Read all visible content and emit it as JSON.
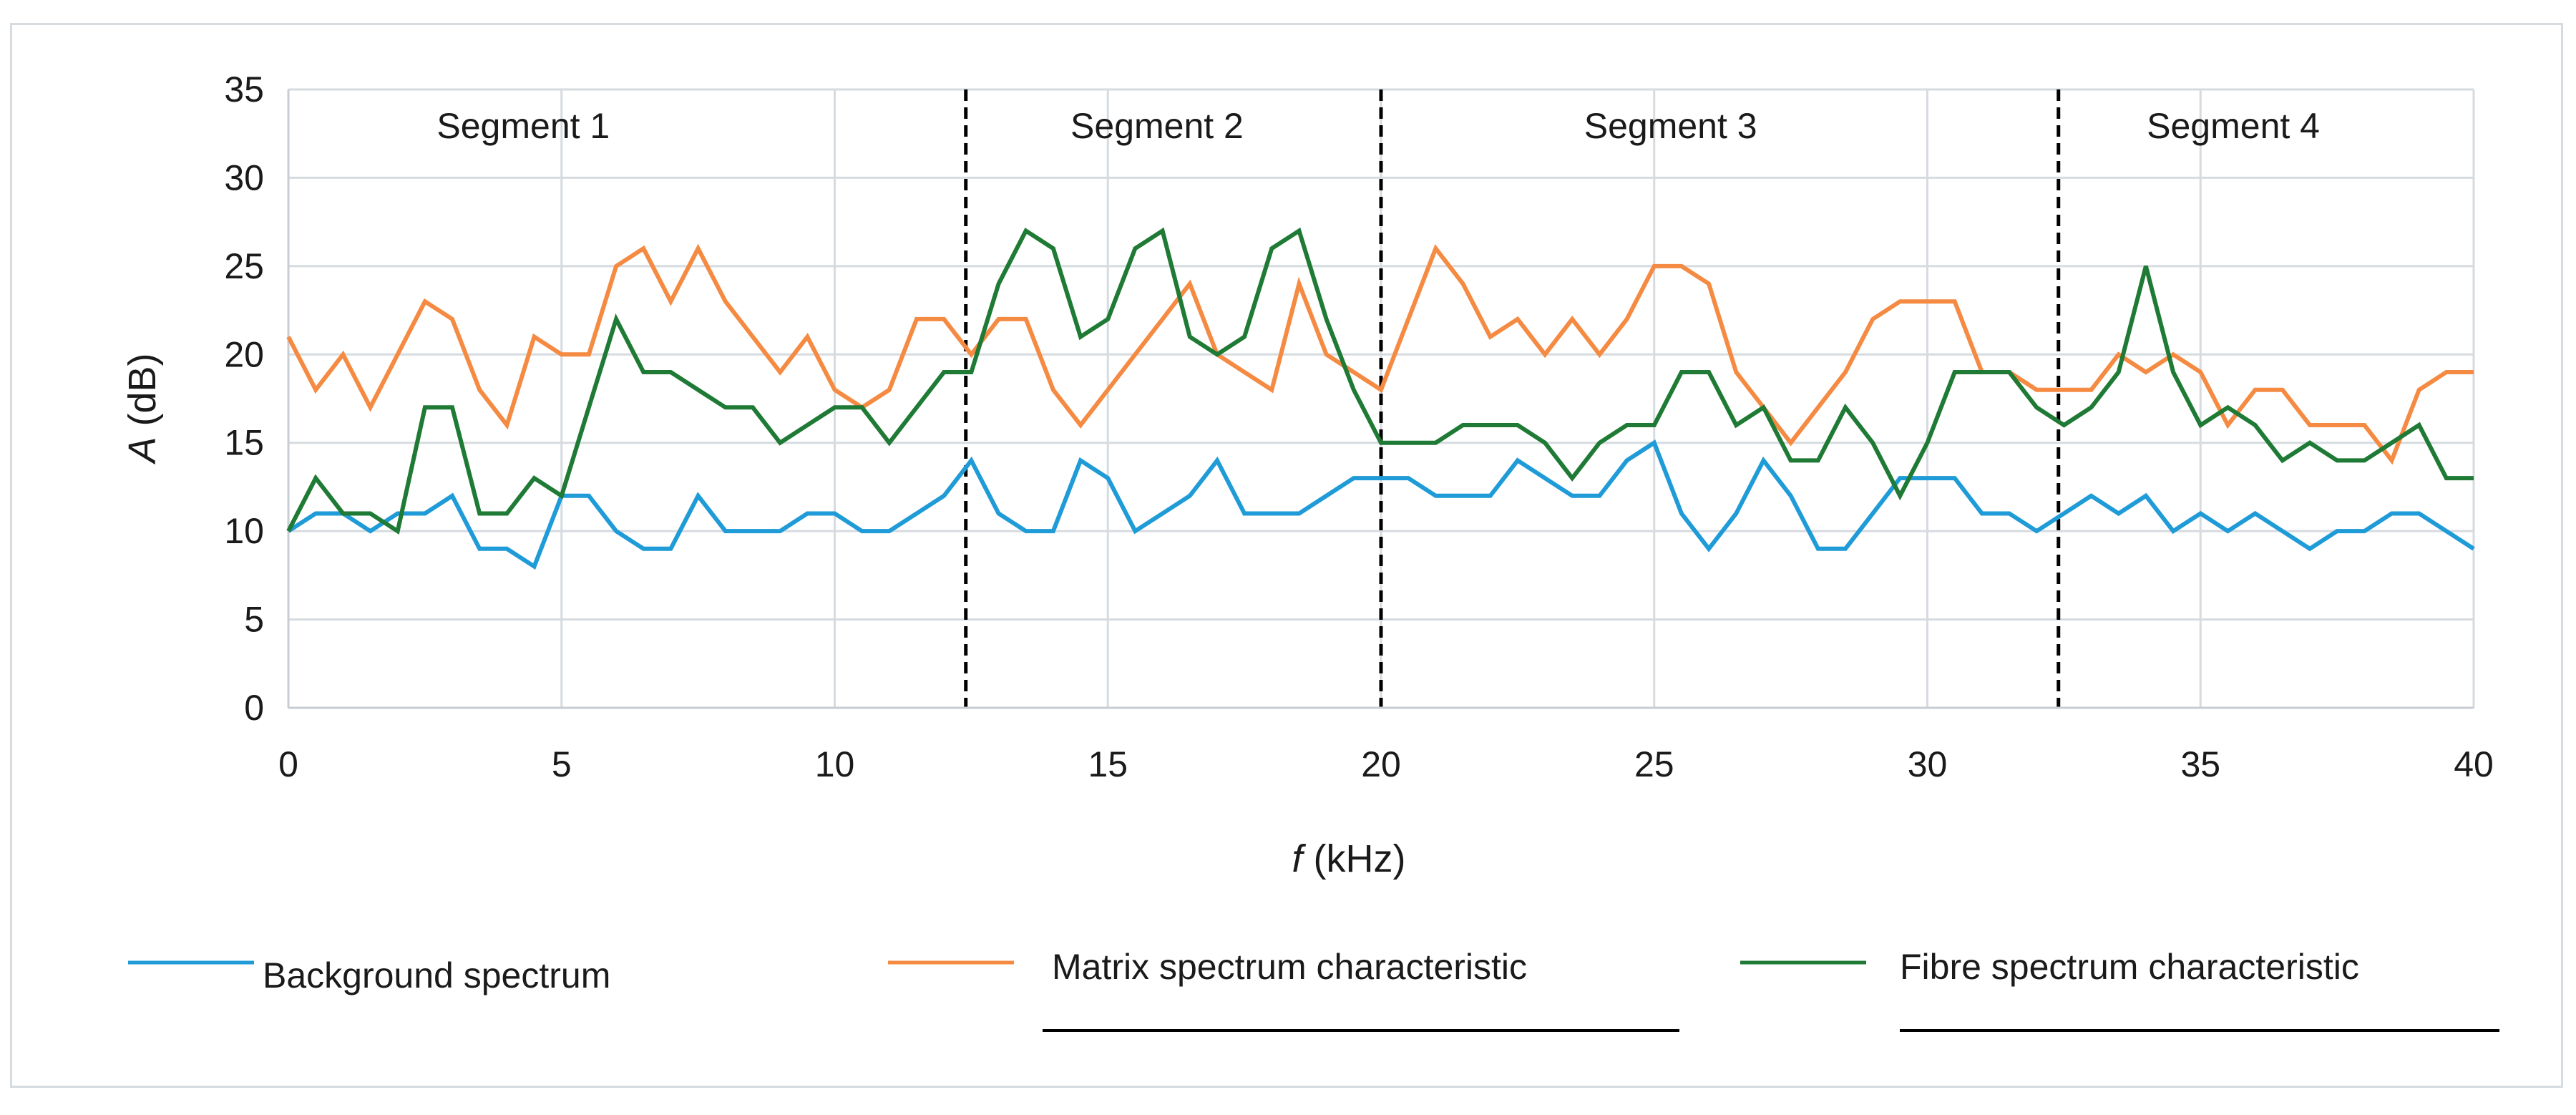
{
  "chart_data": {
    "type": "line",
    "title": "",
    "xlabel_var": "f",
    "xlabel_unit": " (kHz)",
    "ylabel_var": "A",
    "ylabel_unit": " (dB)",
    "xlim": [
      0,
      40
    ],
    "ylim": [
      0,
      35
    ],
    "x_ticks": [
      0,
      5,
      10,
      15,
      20,
      25,
      30,
      35,
      40
    ],
    "y_ticks": [
      0,
      5,
      10,
      15,
      20,
      25,
      30,
      35
    ],
    "grid": true,
    "segments": [
      {
        "label": "Segment 1",
        "x_center": 4.3
      },
      {
        "label": "Segment 2",
        "x_center": 15.9
      },
      {
        "label": "Segment 3",
        "x_center": 25.3
      },
      {
        "label": "Segment 4",
        "x_center": 35.6
      }
    ],
    "segment_boundaries": [
      12.4,
      20.0,
      32.4
    ],
    "legend_position": "bottom",
    "x": [
      0,
      0.5,
      1,
      1.5,
      2,
      2.5,
      3,
      3.5,
      4,
      4.5,
      5,
      5.5,
      6,
      6.5,
      7,
      7.5,
      8,
      8.5,
      9,
      9.5,
      10,
      10.5,
      11,
      11.5,
      12,
      12.5,
      13,
      13.5,
      14,
      14.5,
      15,
      15.5,
      16,
      16.5,
      17,
      17.5,
      18,
      18.5,
      19,
      19.5,
      20,
      20.5,
      21,
      21.5,
      22,
      22.5,
      23,
      23.5,
      24,
      24.5,
      25,
      25.5,
      26,
      26.5,
      27,
      27.5,
      28,
      28.5,
      29,
      29.5,
      30,
      30.5,
      31,
      31.5,
      32,
      32.5,
      33,
      33.5,
      34,
      34.5,
      35,
      35.5,
      36,
      36.5,
      37,
      37.5,
      38,
      38.5,
      39,
      39.5,
      40
    ],
    "series": [
      {
        "name": "Background spectrum",
        "color": "#1f9bd7",
        "values": [
          10,
          11,
          11,
          10,
          11,
          11,
          12,
          9,
          9,
          8,
          12,
          12,
          10,
          9,
          9,
          12,
          10,
          10,
          10,
          11,
          11,
          10,
          10,
          11,
          12,
          14,
          11,
          10,
          10,
          14,
          13,
          10,
          11,
          12,
          14,
          11,
          11,
          11,
          12,
          13,
          13,
          13,
          12,
          12,
          12,
          14,
          13,
          12,
          12,
          14,
          15,
          11,
          9,
          11,
          14,
          12,
          9,
          9,
          11,
          13,
          13,
          13,
          11,
          11,
          10,
          11,
          12,
          11,
          12,
          10,
          11,
          10,
          11,
          10,
          9,
          10,
          10,
          11,
          11,
          10,
          9
        ]
      },
      {
        "name": "Matrix spectrum characteristic",
        "color": "#f58a42",
        "values": [
          21,
          18,
          20,
          17,
          20,
          23,
          22,
          18,
          16,
          21,
          20,
          20,
          25,
          26,
          23,
          26,
          23,
          21,
          19,
          21,
          18,
          17,
          18,
          22,
          22,
          20,
          22,
          22,
          18,
          16,
          18,
          20,
          22,
          24,
          20,
          19,
          18,
          24,
          20,
          19,
          18,
          22,
          26,
          24,
          21,
          22,
          20,
          22,
          20,
          22,
          25,
          25,
          24,
          19,
          17,
          15,
          17,
          19,
          22,
          23,
          23,
          23,
          19,
          19,
          18,
          18,
          18,
          20,
          19,
          20,
          19,
          16,
          18,
          18,
          16,
          16,
          16,
          14,
          18,
          19,
          19
        ]
      },
      {
        "name": "Fibre spectrum characteristic",
        "color": "#1e7a34",
        "values": [
          10,
          13,
          11,
          11,
          10,
          17,
          17,
          11,
          11,
          13,
          12,
          17,
          22,
          19,
          19,
          18,
          17,
          17,
          15,
          16,
          17,
          17,
          15,
          17,
          19,
          19,
          24,
          27,
          26,
          21,
          22,
          26,
          27,
          21,
          20,
          21,
          26,
          27,
          22,
          18,
          15,
          15,
          15,
          16,
          16,
          16,
          15,
          13,
          15,
          16,
          16,
          19,
          19,
          16,
          17,
          14,
          14,
          17,
          15,
          12,
          15,
          19,
          19,
          19,
          17,
          16,
          17,
          19,
          25,
          19,
          16,
          17,
          16,
          14,
          15,
          14,
          14,
          15,
          16,
          13,
          13
        ]
      }
    ]
  }
}
